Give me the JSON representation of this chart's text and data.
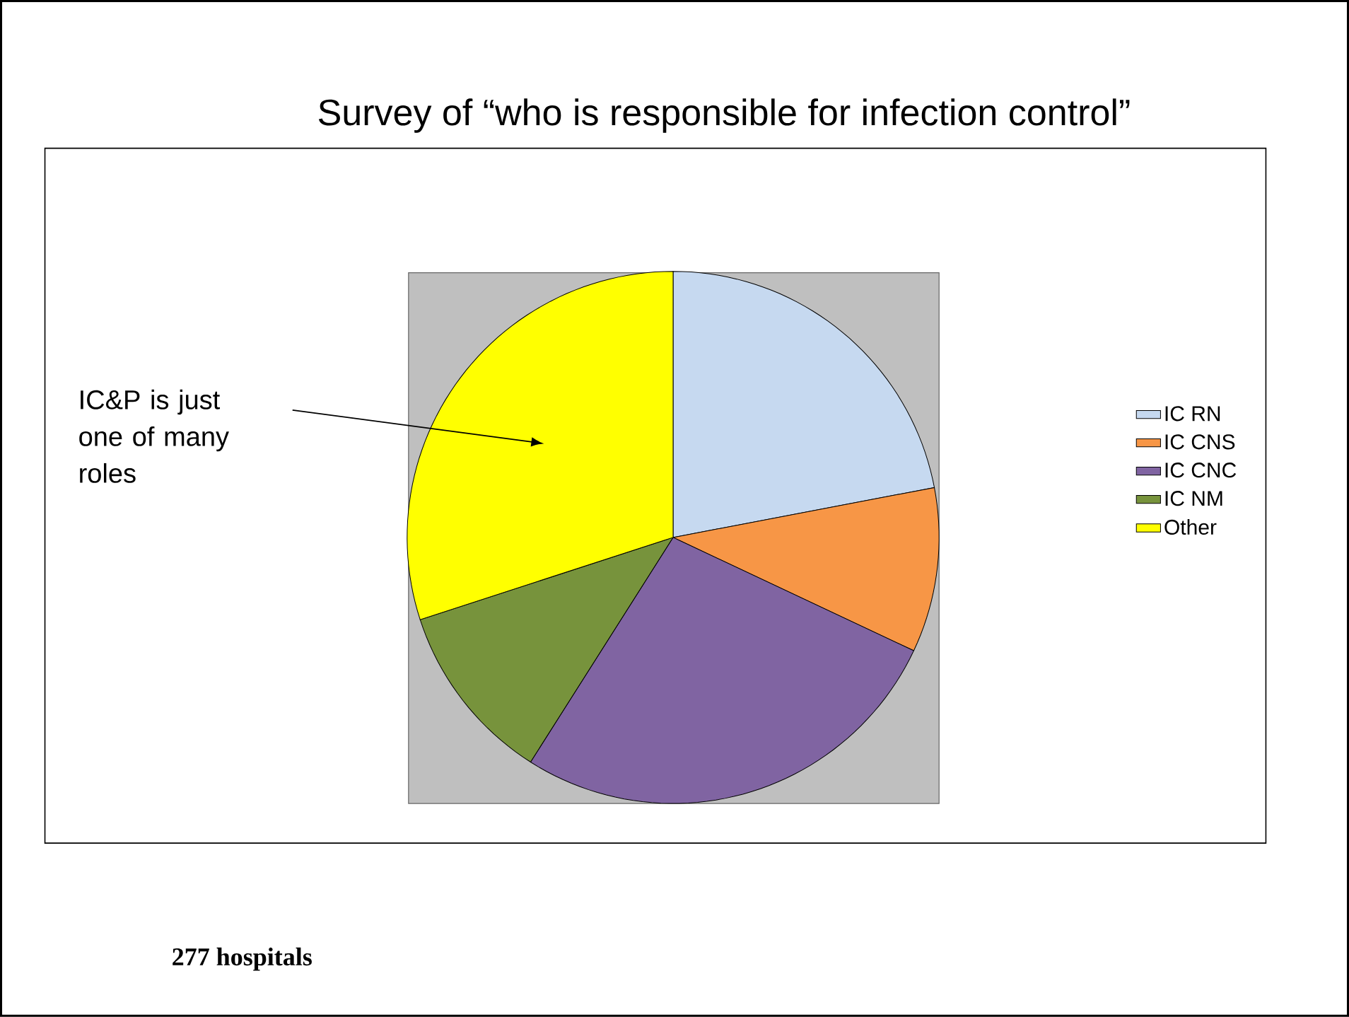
{
  "chart_data": {
    "type": "pie",
    "title": "Survey of “who is responsible for infection control”",
    "categories": [
      "IC RN",
      "IC CNS",
      "IC CNC",
      "IC NM",
      "Other"
    ],
    "values": [
      22,
      10,
      27,
      11,
      30
    ],
    "colors": [
      "#c6d9f0",
      "#f79646",
      "#8064a2",
      "#77933c",
      "#ffff00"
    ],
    "legend": "right",
    "annotations": [
      {
        "text": "IC&P is just one of many roles",
        "x": "Other"
      },
      "277 hospitals"
    ]
  }
}
